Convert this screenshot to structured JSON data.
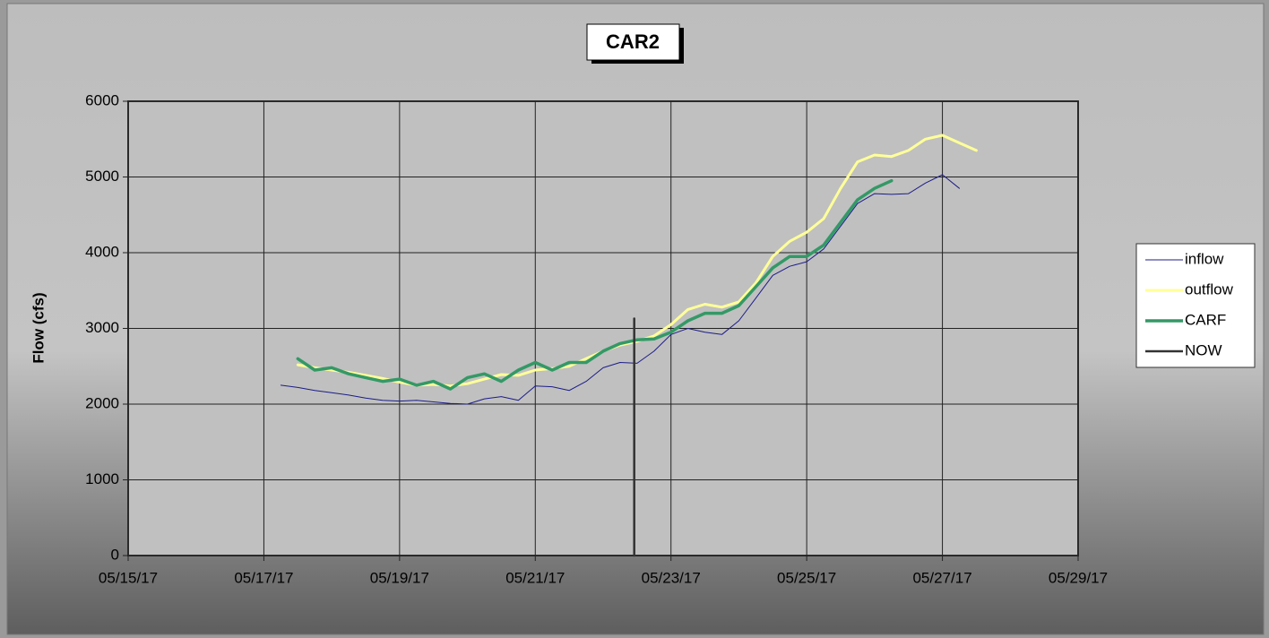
{
  "chart_data": {
    "type": "line",
    "title": "CAR2",
    "y_label": "Flow (cfs)",
    "xlim": [
      "2017-05-15T00:00",
      "2017-05-29T00:00"
    ],
    "xticks": [
      {
        "value": "2017-05-15T00:00",
        "label": "05/15/17"
      },
      {
        "value": "2017-05-17T00:00",
        "label": "05/17/17"
      },
      {
        "value": "2017-05-19T00:00",
        "label": "05/19/17"
      },
      {
        "value": "2017-05-21T00:00",
        "label": "05/21/17"
      },
      {
        "value": "2017-05-23T00:00",
        "label": "05/23/17"
      },
      {
        "value": "2017-05-25T00:00",
        "label": "05/25/17"
      },
      {
        "value": "2017-05-27T00:00",
        "label": "05/27/17"
      },
      {
        "value": "2017-05-29T00:00",
        "label": "05/29/17"
      }
    ],
    "ylim": [
      0,
      6000
    ],
    "yticks": [
      0,
      1000,
      2000,
      3000,
      4000,
      5000,
      6000
    ],
    "grid": true,
    "legend": "right",
    "series": [
      {
        "name": "inflow",
        "color": "#1c1c8a",
        "x": [
          "2017-05-17T06:00",
          "2017-05-17T12:00",
          "2017-05-17T18:00",
          "2017-05-18T00:00",
          "2017-05-18T06:00",
          "2017-05-18T12:00",
          "2017-05-18T18:00",
          "2017-05-19T00:00",
          "2017-05-19T06:00",
          "2017-05-19T12:00",
          "2017-05-19T18:00",
          "2017-05-20T00:00",
          "2017-05-20T06:00",
          "2017-05-20T12:00",
          "2017-05-20T18:00",
          "2017-05-21T00:00",
          "2017-05-21T06:00",
          "2017-05-21T12:00",
          "2017-05-21T18:00",
          "2017-05-22T00:00",
          "2017-05-22T06:00",
          "2017-05-22T12:00",
          "2017-05-22T18:00",
          "2017-05-23T00:00",
          "2017-05-23T06:00",
          "2017-05-23T12:00",
          "2017-05-23T18:00",
          "2017-05-24T00:00",
          "2017-05-24T06:00",
          "2017-05-24T12:00",
          "2017-05-24T18:00",
          "2017-05-25T00:00",
          "2017-05-25T06:00",
          "2017-05-25T12:00",
          "2017-05-25T18:00",
          "2017-05-26T00:00",
          "2017-05-26T06:00",
          "2017-05-26T12:00",
          "2017-05-26T18:00",
          "2017-05-27T00:00",
          "2017-05-27T06:00"
        ],
        "values": [
          2250,
          2220,
          2180,
          2150,
          2120,
          2080,
          2050,
          2040,
          2050,
          2030,
          2010,
          2000,
          2070,
          2100,
          2050,
          2240,
          2230,
          2180,
          2300,
          2480,
          2550,
          2540,
          2700,
          2920,
          3000,
          2950,
          2920,
          3100,
          3400,
          3700,
          3820,
          3880,
          4050,
          4350,
          4650,
          4780,
          4770,
          4780,
          4920,
          5030,
          4850
        ]
      },
      {
        "name": "outflow",
        "color": "#ffff99",
        "x": [
          "2017-05-17T12:00",
          "2017-05-17T18:00",
          "2017-05-18T00:00",
          "2017-05-18T06:00",
          "2017-05-18T12:00",
          "2017-05-18T18:00",
          "2017-05-19T00:00",
          "2017-05-19T06:00",
          "2017-05-19T12:00",
          "2017-05-19T18:00",
          "2017-05-20T00:00",
          "2017-05-20T06:00",
          "2017-05-20T12:00",
          "2017-05-20T18:00",
          "2017-05-21T00:00",
          "2017-05-21T06:00",
          "2017-05-21T12:00",
          "2017-05-21T18:00",
          "2017-05-22T00:00",
          "2017-05-22T06:00",
          "2017-05-22T12:00",
          "2017-05-22T18:00",
          "2017-05-23T00:00",
          "2017-05-23T06:00",
          "2017-05-23T12:00",
          "2017-05-23T18:00",
          "2017-05-24T00:00",
          "2017-05-24T06:00",
          "2017-05-24T12:00",
          "2017-05-24T18:00",
          "2017-05-25T00:00",
          "2017-05-25T06:00",
          "2017-05-25T12:00",
          "2017-05-25T18:00",
          "2017-05-26T00:00",
          "2017-05-26T06:00",
          "2017-05-26T12:00",
          "2017-05-26T18:00",
          "2017-05-27T00:00",
          "2017-05-27T06:00",
          "2017-05-27T12:00"
        ],
        "values": [
          2520,
          2480,
          2450,
          2420,
          2380,
          2340,
          2290,
          2250,
          2260,
          2240,
          2270,
          2330,
          2390,
          2380,
          2450,
          2470,
          2500,
          2600,
          2700,
          2780,
          2830,
          2900,
          3050,
          3250,
          3320,
          3280,
          3350,
          3600,
          3950,
          4150,
          4270,
          4450,
          4850,
          5200,
          5290,
          5270,
          5350,
          5500,
          5550,
          5450,
          5350
        ]
      },
      {
        "name": "CARF",
        "color": "#339966",
        "x": [
          "2017-05-17T12:00",
          "2017-05-17T18:00",
          "2017-05-18T00:00",
          "2017-05-18T06:00",
          "2017-05-18T12:00",
          "2017-05-18T18:00",
          "2017-05-19T00:00",
          "2017-05-19T06:00",
          "2017-05-19T12:00",
          "2017-05-19T18:00",
          "2017-05-20T00:00",
          "2017-05-20T06:00",
          "2017-05-20T12:00",
          "2017-05-20T18:00",
          "2017-05-21T00:00",
          "2017-05-21T06:00",
          "2017-05-21T12:00",
          "2017-05-21T18:00",
          "2017-05-22T00:00",
          "2017-05-22T06:00",
          "2017-05-22T12:00",
          "2017-05-22T18:00",
          "2017-05-23T00:00",
          "2017-05-23T06:00",
          "2017-05-23T12:00",
          "2017-05-23T18:00",
          "2017-05-24T00:00",
          "2017-05-24T06:00",
          "2017-05-24T12:00",
          "2017-05-24T18:00",
          "2017-05-25T00:00",
          "2017-05-25T06:00",
          "2017-05-25T12:00",
          "2017-05-25T18:00",
          "2017-05-26T00:00",
          "2017-05-26T06:00"
        ],
        "values": [
          2600,
          2450,
          2480,
          2400,
          2350,
          2300,
          2330,
          2250,
          2300,
          2200,
          2350,
          2400,
          2300,
          2450,
          2550,
          2450,
          2550,
          2550,
          2700,
          2800,
          2850,
          2860,
          2950,
          3100,
          3200,
          3200,
          3300,
          3550,
          3800,
          3950,
          3950,
          4100,
          4400,
          4700,
          4850,
          4950
        ]
      },
      {
        "name": "NOW",
        "color": "#333333",
        "x": [
          "2017-05-22T11:00",
          "2017-05-22T11:00"
        ],
        "values": [
          0,
          3130
        ]
      }
    ]
  }
}
